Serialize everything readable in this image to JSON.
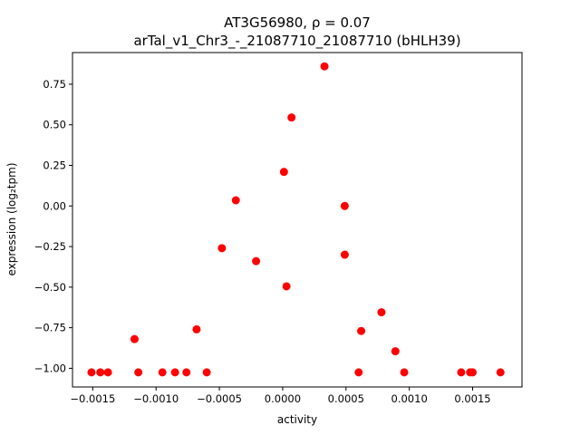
{
  "chart_data": {
    "type": "scatter",
    "title_line1": "AT3G56980, ρ = 0.07",
    "title_line2": "arTal_v1_Chr3_-_21087710_21087710 (bHLH39)",
    "xlabel": "activity",
    "ylabel": "expression (log₂tpm)",
    "xlim": [
      -0.00166,
      0.00189
    ],
    "ylim": [
      -1.115,
      0.945
    ],
    "xticks": [
      {
        "value": -0.0015,
        "label": "−0.0015"
      },
      {
        "value": -0.001,
        "label": "−0.0010"
      },
      {
        "value": -0.0005,
        "label": "−0.0005"
      },
      {
        "value": 0.0,
        "label": "0.0000"
      },
      {
        "value": 0.0005,
        "label": "0.0005"
      },
      {
        "value": 0.001,
        "label": "0.0010"
      },
      {
        "value": 0.0015,
        "label": "0.0015"
      }
    ],
    "yticks": [
      {
        "value": -1.0,
        "label": "−1.00"
      },
      {
        "value": -0.75,
        "label": "−0.75"
      },
      {
        "value": -0.5,
        "label": "−0.50"
      },
      {
        "value": -0.25,
        "label": "−0.25"
      },
      {
        "value": 0.0,
        "label": "0.00"
      },
      {
        "value": 0.25,
        "label": "0.25"
      },
      {
        "value": 0.5,
        "label": "0.50"
      },
      {
        "value": 0.75,
        "label": "0.75"
      }
    ],
    "marker_color": "#ff0000",
    "points": [
      {
        "x": -0.00151,
        "y": -1.025
      },
      {
        "x": -0.00144,
        "y": -1.025
      },
      {
        "x": -0.00138,
        "y": -1.025
      },
      {
        "x": -0.00117,
        "y": -0.82
      },
      {
        "x": -0.00114,
        "y": -1.025
      },
      {
        "x": -0.00095,
        "y": -1.025
      },
      {
        "x": -0.00085,
        "y": -1.025
      },
      {
        "x": -0.00076,
        "y": -1.025
      },
      {
        "x": -0.00068,
        "y": -0.76
      },
      {
        "x": -0.0006,
        "y": -1.025
      },
      {
        "x": -0.00048,
        "y": -0.26
      },
      {
        "x": -0.00037,
        "y": 0.035
      },
      {
        "x": -0.00021,
        "y": -0.34
      },
      {
        "x": 1e-05,
        "y": 0.21
      },
      {
        "x": 3e-05,
        "y": -0.495
      },
      {
        "x": 7e-05,
        "y": 0.545
      },
      {
        "x": 0.00033,
        "y": 0.86
      },
      {
        "x": 0.00049,
        "y": 0.0
      },
      {
        "x": 0.00049,
        "y": -0.3
      },
      {
        "x": 0.0006,
        "y": -1.025
      },
      {
        "x": 0.00062,
        "y": -0.77
      },
      {
        "x": 0.00078,
        "y": -0.655
      },
      {
        "x": 0.00089,
        "y": -0.895
      },
      {
        "x": 0.00096,
        "y": -1.025
      },
      {
        "x": 0.00141,
        "y": -1.025
      },
      {
        "x": 0.00148,
        "y": -1.025
      },
      {
        "x": 0.0015,
        "y": -1.025
      },
      {
        "x": 0.00172,
        "y": -1.025
      }
    ]
  }
}
